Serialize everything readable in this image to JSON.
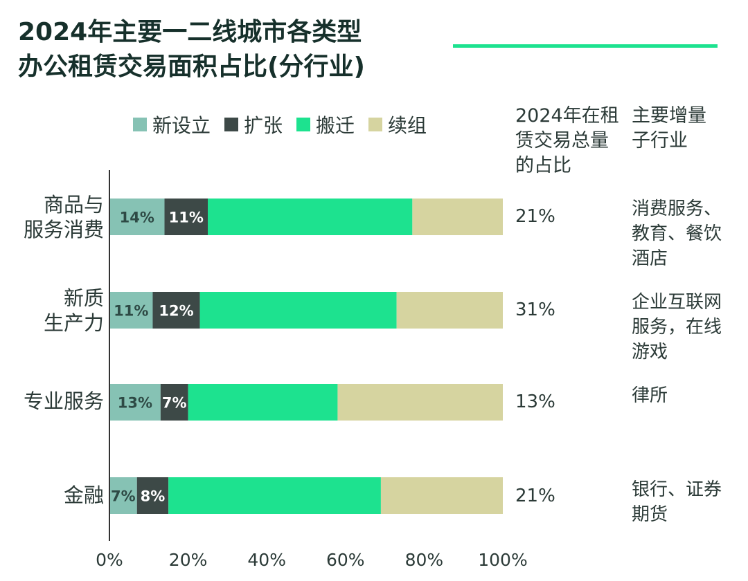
{
  "title": [
    "2024年主要一二线城市各类型",
    "办公租赁交易面积占比(分行业)"
  ],
  "colors": {
    "title_rule": "#1de28f",
    "axis": "#333333",
    "label_light": "#2e4a45",
    "label_dark": "#ffffff"
  },
  "column_headers": {
    "share": [
      "2024年在租",
      "赁交易总量",
      "的占比"
    ],
    "sub_industry": [
      "主要增量",
      "子行业"
    ]
  },
  "rows": [
    {
      "share": "21%",
      "sub_industries": [
        "消费服务、",
        "教育、餐饮",
        "酒店"
      ]
    },
    {
      "share": "31%",
      "sub_industries": [
        "企业互联网",
        "服务，在线",
        "游戏"
      ]
    },
    {
      "share": "13%",
      "sub_industries": [
        "律所"
      ]
    },
    {
      "share": "21%",
      "sub_industries": [
        "银行、证券",
        "期货"
      ]
    }
  ],
  "chart_data": {
    "type": "bar",
    "orientation": "horizontal",
    "stacked": true,
    "normalized": true,
    "categories": [
      [
        "商品与",
        "服务消费"
      ],
      [
        "新质",
        "生产力"
      ],
      [
        "专业服务"
      ],
      [
        "金融"
      ]
    ],
    "series": [
      {
        "name": "新设立",
        "color": "#86c2b4",
        "values": [
          14,
          11,
          13,
          7
        ],
        "labels": [
          "14%",
          "11%",
          "13%",
          "7%"
        ]
      },
      {
        "name": "扩张",
        "color": "#3d4947",
        "values": [
          11,
          12,
          7,
          8
        ],
        "labels": [
          "11%",
          "12%",
          "7%",
          "8%"
        ]
      },
      {
        "name": "搬迁",
        "color": "#1de28f",
        "values": [
          52,
          50,
          38,
          54
        ],
        "labels": [
          "",
          "",
          "",
          ""
        ]
      },
      {
        "name": "续组",
        "color": "#d6d4a0",
        "values": [
          23,
          27,
          42,
          31
        ],
        "labels": [
          "",
          "",
          "",
          ""
        ]
      }
    ],
    "xlim": [
      0,
      100
    ],
    "x_ticks": [
      0,
      20,
      40,
      60,
      80,
      100
    ],
    "x_tick_labels": [
      "0%",
      "20%",
      "40%",
      "60%",
      "80%",
      "100%"
    ],
    "legend_position": "top",
    "grid": false
  }
}
